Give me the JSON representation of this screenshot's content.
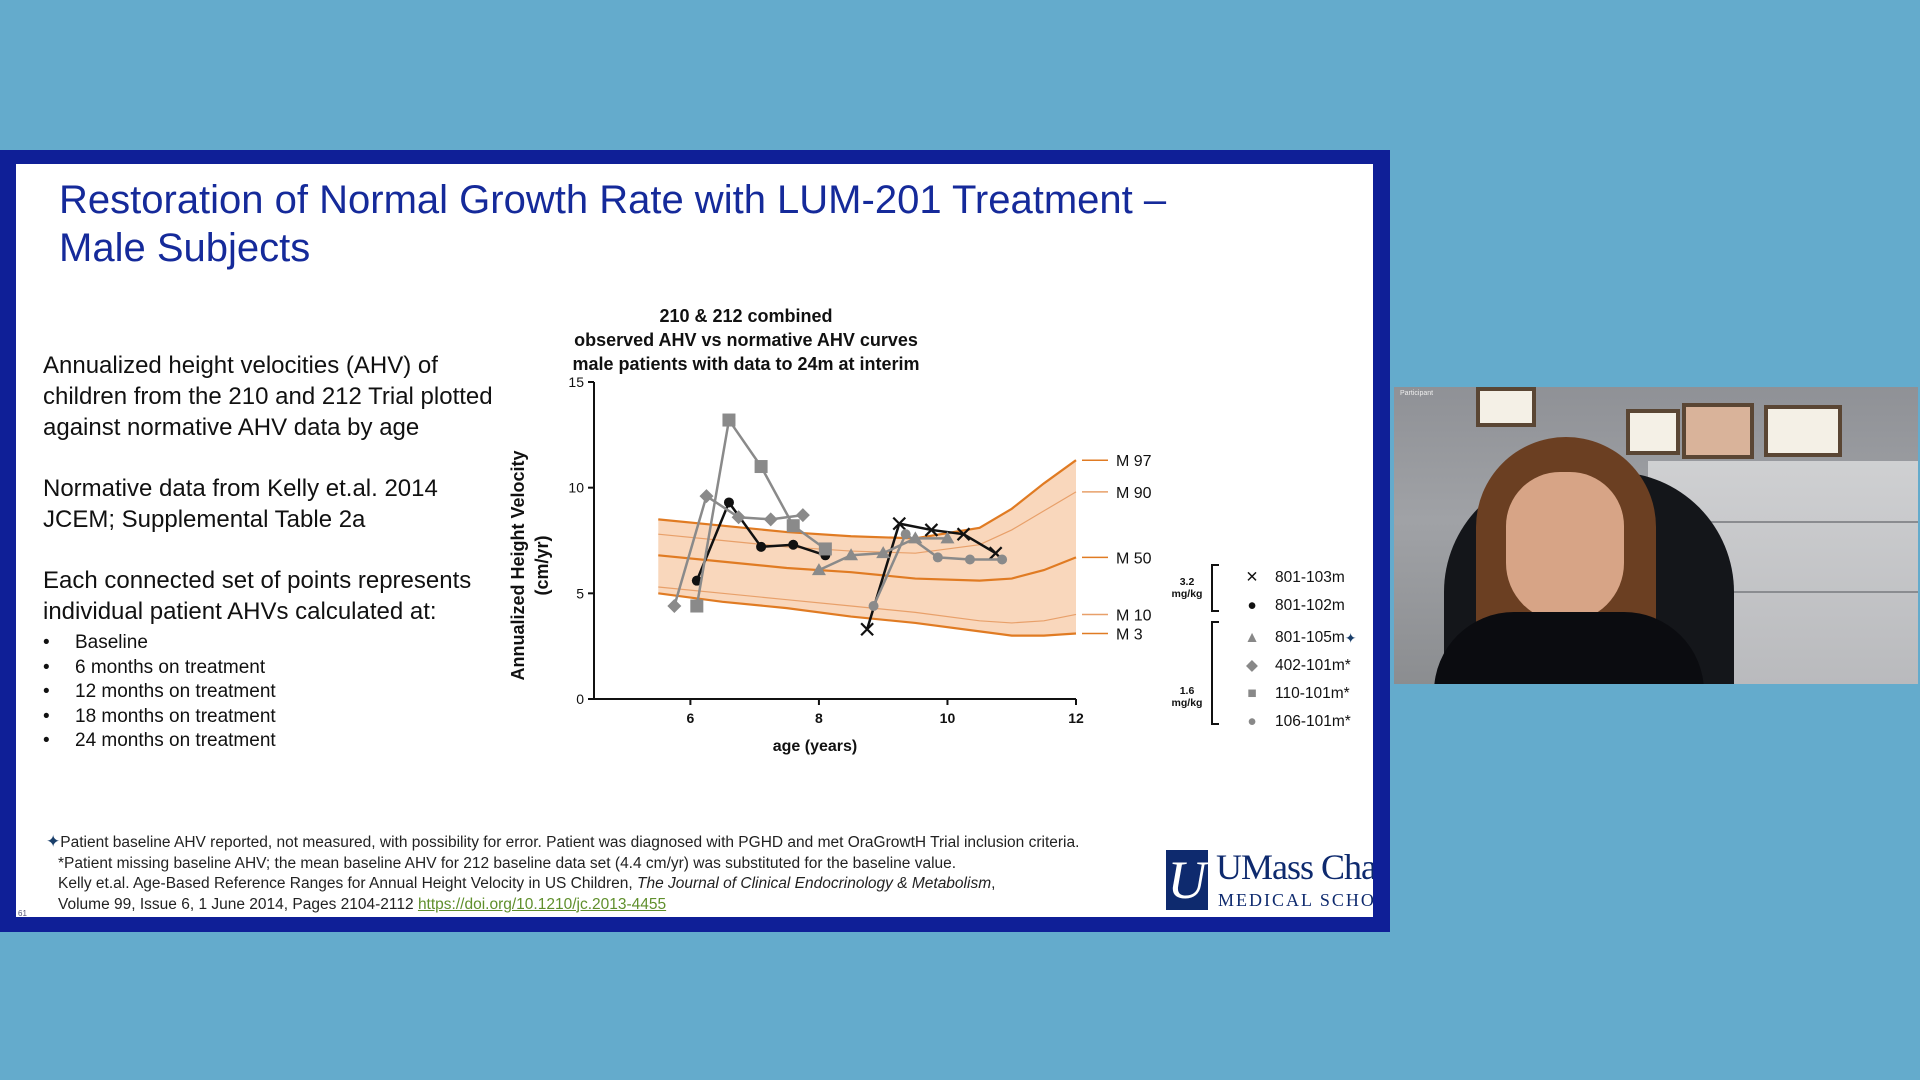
{
  "slide": {
    "title_line1": "Restoration of Normal Growth Rate with LUM-201 Treatment –",
    "title_line2": "Male Subjects",
    "left_p1": "Annualized height velocities (AHV) of children from the 210 and 212 Trial plotted against normative AHV data by age",
    "left_p2": "Normative data from Kelly et.al. 2014 JCEM; Supplemental Table 2a",
    "left_p3": "Each connected set of points represents individual patient AHVs calculated at:",
    "bullets": [
      "Baseline",
      "6 months on treatment",
      "12 months on treatment",
      "18 months on treatment",
      "24 months on treatment"
    ],
    "footnote_line1": "Patient baseline AHV reported, not measured, with possibility for error. Patient was diagnosed with PGHD and met OraGrowtH Trial inclusion criteria.",
    "footnote_line2": "*Patient missing baseline AHV; the mean baseline AHV for 212 baseline data set (4.4 cm/yr) was substituted for the baseline value.",
    "footnote_line3": "Kelly et.al. Age-Based Reference Ranges for Annual Height Velocity in US Children,",
    "footnote_journal": "The Journal of Clinical Endocrinology & Metabolism",
    "footnote_line4": "Volume 99, Issue 6, 1 June 2014, Pages 2104-2112",
    "footnote_link": "https://doi.org/10.1210/jc.2013-4455",
    "footnote_mark": "✦",
    "logo_main": "UMass Chan",
    "logo_sub": "MEDICAL SCHOOL",
    "logo_mark": "U",
    "slide_number": "61"
  },
  "legend": {
    "dose_high": "3.2 mg/kg",
    "dose_low": "1.6 mg/kg",
    "entries": [
      {
        "label": "801-103m",
        "symbol": "✕"
      },
      {
        "label": "801-102m",
        "symbol": "●"
      },
      {
        "label": "801-105m",
        "symbol": "▲"
      },
      {
        "label": "402-101m*",
        "symbol": "◆"
      },
      {
        "label": "110-101m*",
        "symbol": "■"
      },
      {
        "label": "106-101m*",
        "symbol": "●"
      }
    ]
  },
  "video": {
    "participant_label": "Participant"
  },
  "colors": {
    "background": "#64abcc",
    "frame": "#0f1f97",
    "title": "#152a9a",
    "band": "#f7c9a6",
    "curve": "#e07b23",
    "link": "#5f8f2c"
  },
  "chart_data": {
    "type": "line",
    "title_lines": [
      "210 & 212 combined",
      "observed AHV vs normative AHV curves",
      "male patients with data to 24m at interim"
    ],
    "xlabel": "age (years)",
    "ylabel_lines": [
      "Annualized Height Velocity",
      "(cm/yr)"
    ],
    "xlim": [
      4.5,
      12
    ],
    "ylim": [
      0,
      15
    ],
    "xticks": [
      6,
      8,
      10,
      12
    ],
    "yticks": [
      0,
      5,
      10,
      15
    ],
    "reference_curves": [
      {
        "name": "M 97",
        "x": [
          5.5,
          6.5,
          7.5,
          8.5,
          9.5,
          10.5,
          11.0,
          11.5,
          12.0
        ],
        "y": [
          8.5,
          8.2,
          7.9,
          7.7,
          7.6,
          8.1,
          9.0,
          10.2,
          11.3
        ]
      },
      {
        "name": "M 90",
        "x": [
          5.5,
          6.5,
          7.5,
          8.5,
          9.5,
          10.5,
          11.0,
          11.5,
          12.0
        ],
        "y": [
          7.8,
          7.5,
          7.2,
          7.0,
          6.9,
          7.3,
          8.0,
          8.9,
          9.8
        ]
      },
      {
        "name": "M 50",
        "x": [
          5.5,
          6.5,
          7.5,
          8.5,
          9.5,
          10.5,
          11.0,
          11.5,
          12.0
        ],
        "y": [
          6.8,
          6.5,
          6.2,
          6.0,
          5.7,
          5.6,
          5.7,
          6.1,
          6.7
        ]
      },
      {
        "name": "M 10",
        "x": [
          5.5,
          6.5,
          7.5,
          8.5,
          9.5,
          10.5,
          11.0,
          11.5,
          12.0
        ],
        "y": [
          5.3,
          5.0,
          4.7,
          4.4,
          4.1,
          3.7,
          3.6,
          3.7,
          4.0
        ]
      },
      {
        "name": "M 3",
        "x": [
          5.5,
          6.5,
          7.5,
          8.5,
          9.5,
          10.5,
          11.0,
          11.5,
          12.0
        ],
        "y": [
          5.0,
          4.6,
          4.3,
          3.9,
          3.6,
          3.2,
          3.0,
          3.0,
          3.1
        ]
      }
    ],
    "series": [
      {
        "name": "801-103m",
        "marker": "x",
        "color": "#111111",
        "x": [
          8.75,
          9.25,
          9.75,
          10.25,
          10.75
        ],
        "y": [
          3.3,
          8.3,
          8.0,
          7.8,
          6.9
        ]
      },
      {
        "name": "801-102m",
        "marker": "circle",
        "color": "#111111",
        "x": [
          6.1,
          6.6,
          7.1,
          7.6,
          8.1
        ],
        "y": [
          5.6,
          9.3,
          7.2,
          7.3,
          6.8
        ]
      },
      {
        "name": "801-105m",
        "marker": "triangle",
        "color": "#8a8a8a",
        "x": [
          8.0,
          8.5,
          9.0,
          9.5,
          10.0
        ],
        "y": [
          6.1,
          6.8,
          6.9,
          7.6,
          7.6
        ]
      },
      {
        "name": "402-101m*",
        "marker": "diamond",
        "color": "#8a8a8a",
        "x": [
          5.75,
          6.25,
          6.75,
          7.25,
          7.75
        ],
        "y": [
          4.4,
          9.6,
          8.6,
          8.5,
          8.7
        ]
      },
      {
        "name": "110-101m*",
        "marker": "square",
        "color": "#8a8a8a",
        "x": [
          6.1,
          6.6,
          7.1,
          7.6,
          8.1
        ],
        "y": [
          4.4,
          13.2,
          11.0,
          8.2,
          7.1
        ]
      },
      {
        "name": "106-101m*",
        "marker": "circle",
        "color": "#8a8a8a",
        "x": [
          8.85,
          9.35,
          9.85,
          10.35,
          10.85
        ],
        "y": [
          4.4,
          7.8,
          6.7,
          6.6,
          6.6
        ]
      }
    ]
  }
}
